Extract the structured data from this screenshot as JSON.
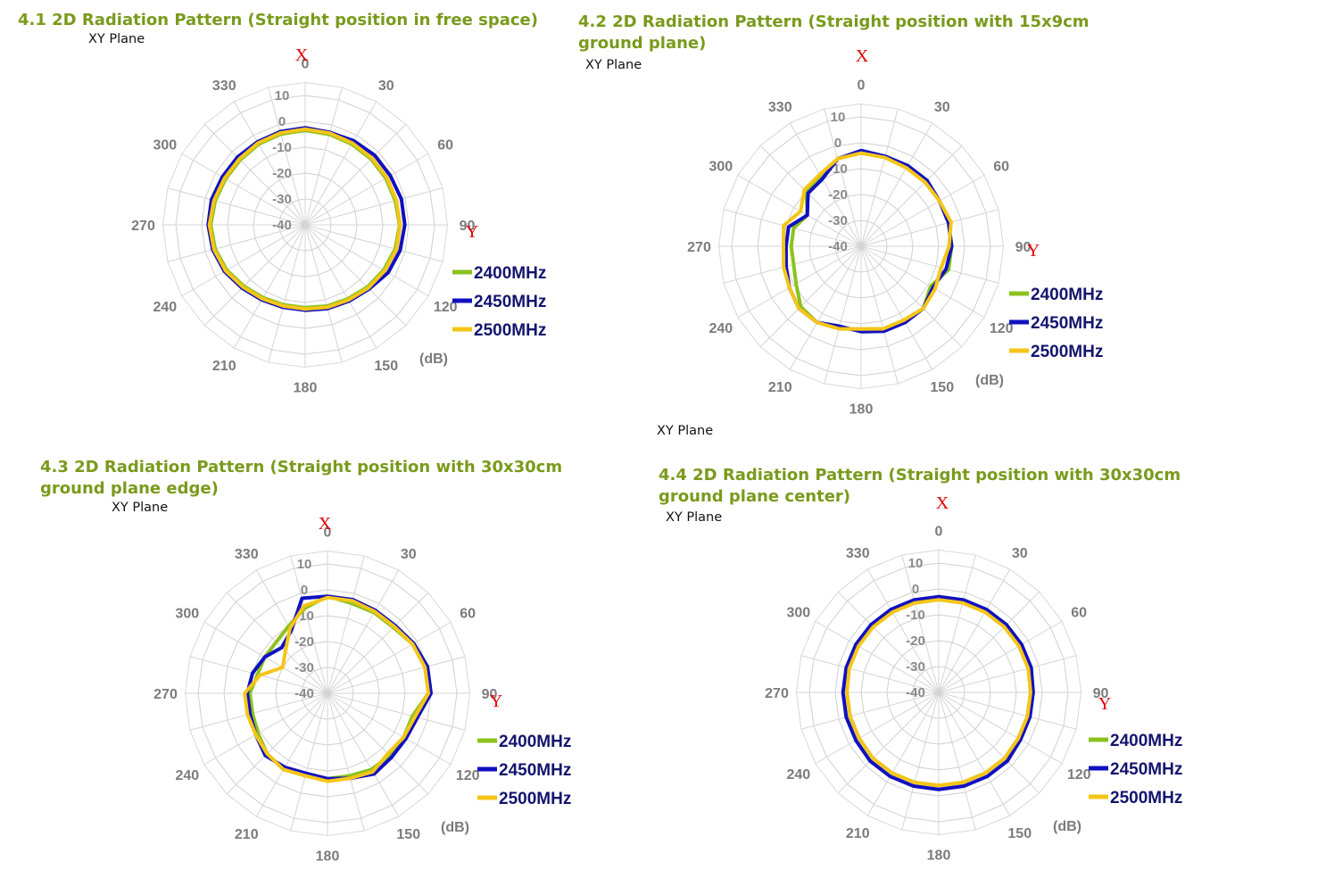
{
  "sections": [
    {
      "title": "4.1 2D Radiation Pattern (Straight position in free space)",
      "plane": "XY Plane"
    },
    {
      "title": "4.2 2D Radiation Pattern (Straight position with 15x9cm ground plane)",
      "plane": "XY Plane"
    },
    {
      "title": "4.3 2D Radiation Pattern (Straight position with 30x30cm ground plane edge)",
      "plane": "XY Plane"
    },
    {
      "title": "4.4 2D Radiation Pattern (Straight position with 30x30cm ground plane center)",
      "plane": "XY Plane"
    }
  ],
  "stray_plane_label": "XY Plane",
  "colors": {
    "2400MHz": "#8cc21e",
    "2450MHz": "#1010c0",
    "2500MHz": "#f5c518",
    "title": "#7a9a1c",
    "axis_label": "#e00000"
  },
  "chart_data": [
    {
      "type": "polar-line",
      "x_axis_label": "X",
      "y_axis_label": "Y",
      "unit": "(dB)",
      "angle_ticks": [
        "0",
        "30",
        "60",
        "90",
        "120",
        "150",
        "180",
        "210",
        "240",
        "270",
        "300",
        "330"
      ],
      "radial_ticks": [
        "10",
        "0",
        "-10",
        "-20",
        "-30",
        "-40"
      ],
      "rlim": [
        -40,
        10
      ],
      "grid": true,
      "legend": "right",
      "angles": [
        0,
        15,
        30,
        45,
        60,
        75,
        90,
        105,
        120,
        135,
        150,
        165,
        180,
        195,
        210,
        225,
        240,
        255,
        270,
        285,
        300,
        315,
        330,
        345
      ],
      "series": [
        {
          "name": "2400MHz",
          "values": [
            -3.5,
            -3.8,
            -4,
            -4,
            -4,
            -4,
            -3.5,
            -4,
            -5,
            -6,
            -7,
            -7.5,
            -8,
            -8,
            -7.5,
            -6.5,
            -5,
            -4,
            -3.5,
            -4,
            -4.5,
            -4.5,
            -4,
            -3.7
          ]
        },
        {
          "name": "2450MHz",
          "values": [
            -2.5,
            -3,
            -2.5,
            -2,
            -2,
            -1.5,
            -1.5,
            -2,
            -3,
            -5,
            -6,
            -6.5,
            -7,
            -7,
            -6.5,
            -5.5,
            -4,
            -3,
            -2.5,
            -2.5,
            -3,
            -3,
            -3,
            -2.7
          ]
        },
        {
          "name": "2500MHz",
          "values": [
            -3,
            -3.3,
            -3.5,
            -3.5,
            -3.5,
            -3.5,
            -3.3,
            -3.5,
            -4.5,
            -5.5,
            -6.5,
            -7,
            -7.5,
            -7.5,
            -7,
            -6,
            -4.5,
            -3.5,
            -3,
            -3.5,
            -4,
            -4,
            -3.5,
            -3.2
          ]
        }
      ]
    },
    {
      "type": "polar-line",
      "x_axis_label": "X",
      "y_axis_label": "Y",
      "unit": "(dB)",
      "angle_ticks": [
        "0",
        "30",
        "60",
        "90",
        "120",
        "150",
        "180",
        "210",
        "240",
        "270",
        "300",
        "330"
      ],
      "radial_ticks": [
        "10",
        "0",
        "-10",
        "-20",
        "-30",
        "-40"
      ],
      "rlim": [
        -40,
        10
      ],
      "grid": true,
      "legend": "right",
      "angles": [
        0,
        15,
        30,
        45,
        60,
        75,
        90,
        105,
        120,
        135,
        150,
        165,
        180,
        195,
        210,
        225,
        240,
        255,
        270,
        285,
        300,
        315,
        330,
        345
      ],
      "series": [
        {
          "name": "2400MHz",
          "values": [
            -3.5,
            -4,
            -5,
            -5,
            -5,
            -5,
            -5,
            -5,
            -9,
            -6,
            -7,
            -7,
            -8,
            -7,
            -6,
            -7,
            -11,
            -13,
            -13,
            -13,
            -16,
            -10,
            -9,
            -5
          ]
        },
        {
          "name": "2450MHz",
          "values": [
            -3,
            -4,
            -4,
            -4,
            -5,
            -5,
            -5,
            -6,
            -8,
            -6,
            -6,
            -6,
            -7,
            -8,
            -6,
            -6,
            -8,
            -10,
            -11,
            -11,
            -16,
            -11,
            -10,
            -5
          ]
        },
        {
          "name": "2500MHz",
          "values": [
            -4,
            -4.5,
            -5,
            -5,
            -5,
            -4,
            -6,
            -8,
            -7,
            -6,
            -7,
            -7,
            -8,
            -7,
            -6,
            -6,
            -8,
            -9,
            -10,
            -9,
            -13,
            -9,
            -8,
            -5
          ]
        }
      ]
    },
    {
      "type": "polar-line",
      "x_axis_label": "X",
      "y_axis_label": "Y",
      "unit": "(dB)",
      "angle_ticks": [
        "0",
        "30",
        "60",
        "90",
        "120",
        "150",
        "180",
        "210",
        "240",
        "270",
        "300",
        "330"
      ],
      "radial_ticks": [
        "10",
        "0",
        "-10",
        "-20",
        "-30",
        "-40"
      ],
      "rlim": [
        -40,
        10
      ],
      "grid": true,
      "legend": "right",
      "angles": [
        0,
        15,
        30,
        45,
        60,
        75,
        90,
        105,
        120,
        135,
        150,
        165,
        180,
        195,
        210,
        225,
        240,
        255,
        270,
        285,
        300,
        315,
        330,
        345
      ],
      "series": [
        {
          "name": "2400MHz",
          "values": [
            -2.5,
            -4,
            -4,
            -4,
            -2,
            -1,
            -1,
            -6,
            -6,
            -6,
            -6,
            -7,
            -7,
            -7,
            -6,
            -7,
            -9,
            -10,
            -10,
            -12,
            -12,
            -12,
            -10,
            -6
          ]
        },
        {
          "name": "2450MHz",
          "values": [
            -2.5,
            -2.5,
            -3,
            -3,
            -1.5,
            0,
            0,
            -4,
            -5,
            -5,
            -4,
            -6,
            -7,
            -8,
            -7,
            -6,
            -8,
            -9,
            -9,
            -10,
            -12,
            -15,
            -12,
            -2
          ]
        },
        {
          "name": "2500MHz",
          "values": [
            -3,
            -3,
            -3.5,
            -3.5,
            -2,
            -1,
            -1,
            -5,
            -6,
            -7,
            -5,
            -6,
            -6,
            -7,
            -6,
            -7,
            -8,
            -8,
            -8,
            -13,
            -20,
            -17,
            -11,
            -5
          ]
        }
      ]
    },
    {
      "type": "polar-line",
      "x_axis_label": "X",
      "y_axis_label": "Y",
      "unit": "(dB)",
      "angle_ticks": [
        "0",
        "30",
        "60",
        "90",
        "120",
        "150",
        "180",
        "210",
        "240",
        "270",
        "300",
        "330"
      ],
      "radial_ticks": [
        "10",
        "0",
        "-10",
        "-20",
        "-30",
        "-40"
      ],
      "rlim": [
        -40,
        10
      ],
      "grid": true,
      "legend": "right",
      "angles": [
        0,
        15,
        30,
        45,
        60,
        75,
        90,
        105,
        120,
        135,
        150,
        165,
        180,
        195,
        210,
        225,
        240,
        255,
        270,
        285,
        300,
        315,
        330,
        345
      ],
      "series": [
        {
          "name": "2400MHz",
          "values": [
            -4,
            -4,
            -4,
            -4,
            -4,
            -4,
            -4.5,
            -4.5,
            -4.5,
            -4,
            -4,
            -4,
            -4,
            -4,
            -4,
            -4,
            -4.5,
            -4.5,
            -4.5,
            -4,
            -4,
            -4,
            -4,
            -4
          ]
        },
        {
          "name": "2450MHz",
          "values": [
            -3,
            -3,
            -3,
            -3,
            -3,
            -3,
            -3.5,
            -3.5,
            -3.5,
            -2.5,
            -2.5,
            -2.5,
            -2.5,
            -2.5,
            -2.5,
            -2.5,
            -3,
            -3,
            -3,
            -3,
            -3,
            -3,
            -3,
            -3
          ]
        },
        {
          "name": "2500MHz",
          "values": [
            -4.2,
            -4.2,
            -4.2,
            -4.2,
            -4.2,
            -4.2,
            -4.5,
            -4.5,
            -4.5,
            -4,
            -4,
            -4,
            -4,
            -4,
            -4,
            -4,
            -4.5,
            -4.5,
            -4.5,
            -4.2,
            -4.2,
            -4.2,
            -4.2,
            -4.2
          ]
        }
      ]
    }
  ]
}
